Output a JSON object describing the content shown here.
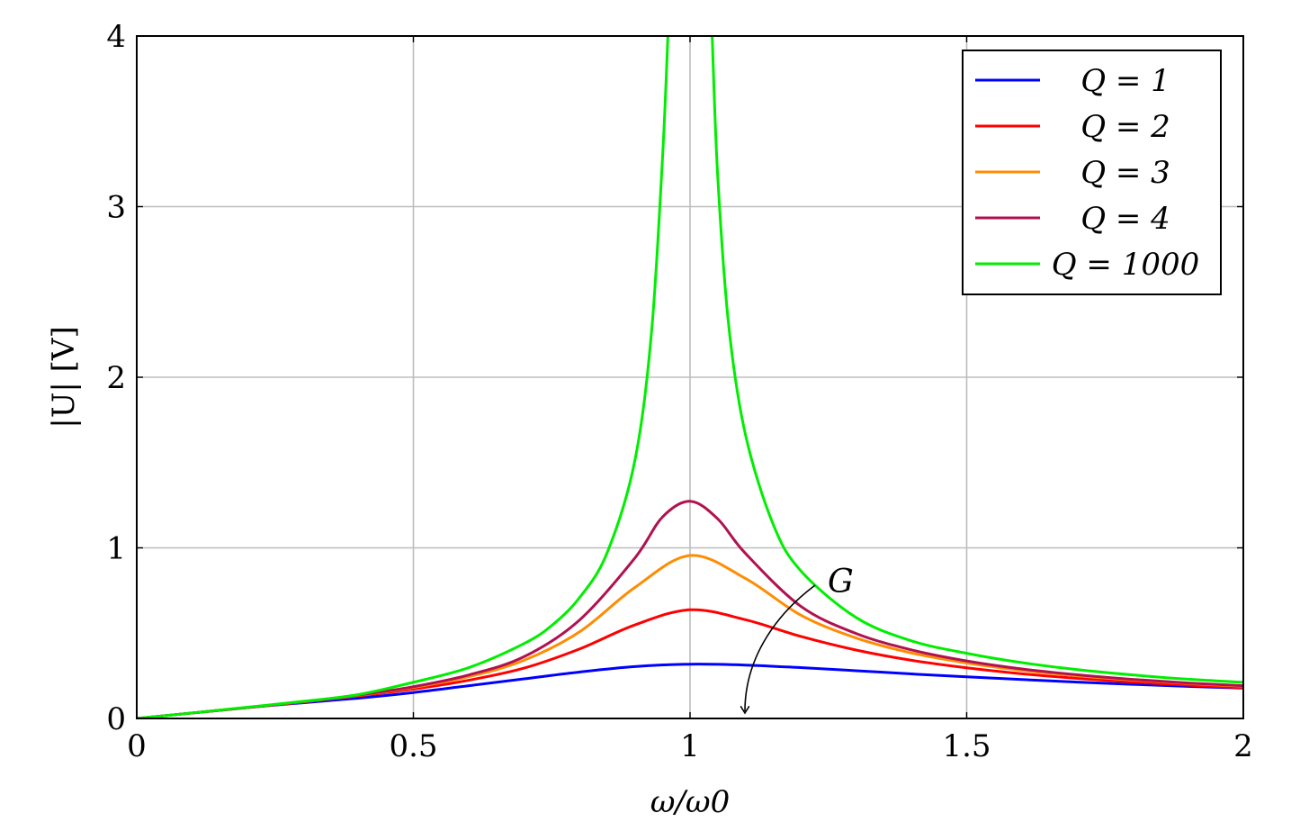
{
  "chart_data": {
    "type": "line",
    "xlabel": "ω/ω0",
    "ylabel": "|U| [V]",
    "xlim": [
      0,
      2
    ],
    "ylim": [
      0,
      4
    ],
    "x_ticks": [
      "0",
      "0.5",
      "1",
      "1.5",
      "2"
    ],
    "y_ticks": [
      "0",
      "1",
      "2",
      "3",
      "4"
    ],
    "grid": true,
    "legend_position": "top-right",
    "annotation": {
      "text": "G",
      "arrow": "curved arrow pointing downward across the curves"
    },
    "series": [
      {
        "name": "Q = 1",
        "color": "#0000ff",
        "x": [
          0,
          0.1,
          0.2,
          0.3,
          0.4,
          0.5,
          0.6,
          0.7,
          0.8,
          0.9,
          1.0,
          1.1,
          1.2,
          1.3,
          1.4,
          1.5,
          1.6,
          1.7,
          1.8,
          1.9,
          2.0
        ],
        "values": [
          0,
          0.032,
          0.064,
          0.092,
          0.119,
          0.152,
          0.192,
          0.232,
          0.272,
          0.304,
          0.318,
          0.313,
          0.298,
          0.28,
          0.261,
          0.244,
          0.228,
          0.213,
          0.2,
          0.188,
          0.178
        ]
      },
      {
        "name": "Q = 2",
        "color": "#ff0000",
        "x": [
          0,
          0.1,
          0.2,
          0.3,
          0.4,
          0.5,
          0.6,
          0.7,
          0.8,
          0.9,
          1.0,
          1.1,
          1.2,
          1.3,
          1.4,
          1.5,
          1.6,
          1.7,
          1.8,
          1.9,
          2.0
        ],
        "values": [
          0,
          0.032,
          0.064,
          0.096,
          0.132,
          0.172,
          0.224,
          0.295,
          0.407,
          0.548,
          0.637,
          0.579,
          0.481,
          0.401,
          0.341,
          0.297,
          0.262,
          0.235,
          0.213,
          0.195,
          0.18
        ]
      },
      {
        "name": "Q = 3",
        "color": "#ff8c00",
        "x": [
          0,
          0.1,
          0.2,
          0.3,
          0.4,
          0.5,
          0.6,
          0.7,
          0.8,
          0.9,
          1.0,
          1.1,
          1.2,
          1.3,
          1.4,
          1.5,
          1.6,
          1.7,
          1.8,
          1.9,
          2.0
        ],
        "values": [
          0,
          0.032,
          0.064,
          0.097,
          0.135,
          0.182,
          0.245,
          0.341,
          0.507,
          0.767,
          0.955,
          0.821,
          0.606,
          0.472,
          0.384,
          0.325,
          0.282,
          0.25,
          0.225,
          0.205,
          0.189
        ]
      },
      {
        "name": "Q = 4",
        "color": "#b0124f",
        "x": [
          0,
          0.1,
          0.2,
          0.3,
          0.4,
          0.5,
          0.6,
          0.7,
          0.8,
          0.9,
          0.95,
          1.0,
          1.05,
          1.1,
          1.2,
          1.3,
          1.4,
          1.5,
          1.6,
          1.7,
          1.8,
          1.9,
          2.0
        ],
        "values": [
          0,
          0.032,
          0.064,
          0.098,
          0.137,
          0.186,
          0.255,
          0.362,
          0.576,
          0.939,
          1.18,
          1.273,
          1.17,
          0.968,
          0.658,
          0.498,
          0.402,
          0.337,
          0.29,
          0.256,
          0.229,
          0.208,
          0.192
        ]
      },
      {
        "name": "Q = 1000",
        "color": "#00ee00",
        "x": [
          0,
          0.1,
          0.2,
          0.3,
          0.4,
          0.5,
          0.6,
          0.7,
          0.75,
          0.8,
          0.85,
          0.9,
          0.93,
          0.95,
          0.96,
          1.04,
          1.05,
          1.07,
          1.1,
          1.15,
          1.2,
          1.3,
          1.4,
          1.5,
          1.6,
          1.7,
          1.8,
          1.9,
          2.0
        ],
        "values": [
          0,
          0.032,
          0.066,
          0.1,
          0.14,
          0.212,
          0.298,
          0.439,
          0.545,
          0.707,
          0.97,
          1.507,
          2.25,
          3.27,
          4.0,
          4.0,
          3.18,
          2.3,
          1.666,
          1.14,
          0.866,
          0.592,
          0.455,
          0.382,
          0.327,
          0.286,
          0.255,
          0.23,
          0.212
        ]
      }
    ]
  }
}
